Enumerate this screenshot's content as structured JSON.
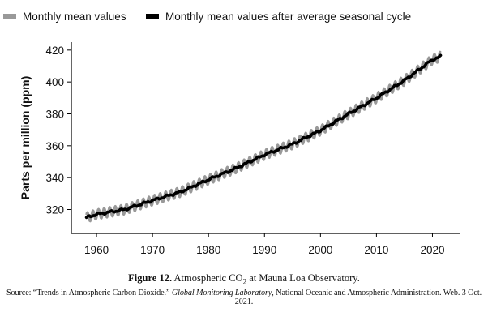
{
  "legend": {
    "raw_label": "Monthly mean values",
    "raw_color": "#999999",
    "trend_label": "Monthly mean values after average seasonal cycle",
    "trend_color": "#000000"
  },
  "caption": {
    "figure_number": "Figure 12.",
    "title_before": "Atmospheric CO",
    "title_subscript": "2",
    "title_after": "at Mauna Loa Observatory.",
    "source_prefix": "Source: “Trends in Atmospheric Carbon Dioxide.”",
    "source_italic": "Global Monitoring Laboratory",
    "source_suffix": ", National Oceanic and Atmospheric Administration. Web. 3 Oct. 2021."
  },
  "chart_data": {
    "type": "line",
    "title": "",
    "xlabel": "",
    "ylabel": "Parts per million (ppm)",
    "xlim": [
      1955.5,
      2025
    ],
    "ylim": [
      305,
      425
    ],
    "xticks": [
      1960,
      1970,
      1980,
      1990,
      2000,
      2010,
      2020
    ],
    "yticks": [
      320,
      340,
      360,
      380,
      400,
      420
    ],
    "grid": false,
    "legend_position": "top",
    "seasonal_amplitude_ppm": 3,
    "x": [
      1958.2,
      1960,
      1965,
      1970,
      1975,
      1980,
      1985,
      1990,
      1995,
      2000,
      2005,
      2010,
      2015,
      2020,
      2021.5
    ],
    "series": [
      {
        "name": "Monthly mean values after average seasonal cycle",
        "values": [
          315,
          317,
          320,
          325.7,
          331,
          338.8,
          346,
          354.4,
          361,
          369.6,
          380,
          389.9,
          401,
          414,
          416
        ]
      },
      {
        "name": "Monthly mean values",
        "values": [
          315,
          317,
          320,
          325.7,
          331,
          338.8,
          346,
          354.4,
          361,
          369.6,
          380,
          389.9,
          401,
          414,
          416
        ],
        "note": "seasonal"
      }
    ]
  }
}
